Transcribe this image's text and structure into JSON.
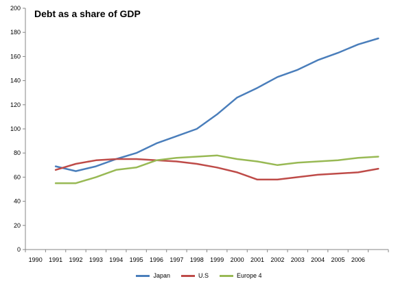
{
  "chart_data": {
    "type": "line",
    "title": "Debt as a share of GDP",
    "xlabel": "",
    "ylabel": "",
    "ylim": [
      0,
      200
    ],
    "yticks": [
      0,
      20,
      40,
      60,
      80,
      100,
      120,
      140,
      160,
      180,
      200
    ],
    "categories": [
      "1990",
      "1991",
      "1992",
      "1993",
      "1994",
      "1995",
      "1996",
      "1997",
      "1998",
      "1999",
      "2000",
      "2001",
      "2002",
      "2003",
      "2004",
      "2005",
      "2006"
    ],
    "series": [
      {
        "name": "Japan",
        "color": "#4A7EBB",
        "x": [
          1991,
          1992,
          1993,
          1994,
          1995,
          1996,
          1997,
          1998,
          1999,
          2000,
          2001,
          2002,
          2003,
          2004,
          2005,
          2006,
          2007
        ],
        "values": [
          69,
          65,
          69,
          75,
          80,
          88,
          94,
          100,
          112,
          126,
          134,
          143,
          149,
          157,
          163,
          170,
          175
        ]
      },
      {
        "name": "U.S",
        "color": "#BE4B48",
        "x": [
          1991,
          1992,
          1993,
          1994,
          1995,
          1996,
          1997,
          1998,
          1999,
          2000,
          2001,
          2002,
          2003,
          2004,
          2005,
          2006,
          2007
        ],
        "values": [
          66,
          71,
          74,
          75,
          75,
          74,
          73,
          71,
          68,
          64,
          58,
          58,
          60,
          62,
          63,
          64,
          67
        ]
      },
      {
        "name": "Europe 4",
        "color": "#98B954",
        "x": [
          1991,
          1992,
          1993,
          1994,
          1995,
          1996,
          1997,
          1998,
          1999,
          2000,
          2001,
          2002,
          2003,
          2004,
          2005,
          2006,
          2007
        ],
        "values": [
          55,
          55,
          60,
          66,
          68,
          74,
          76,
          77,
          78,
          75,
          73,
          70,
          72,
          73,
          74,
          76,
          77
        ]
      }
    ],
    "grid": false,
    "legend_position": "bottom"
  }
}
